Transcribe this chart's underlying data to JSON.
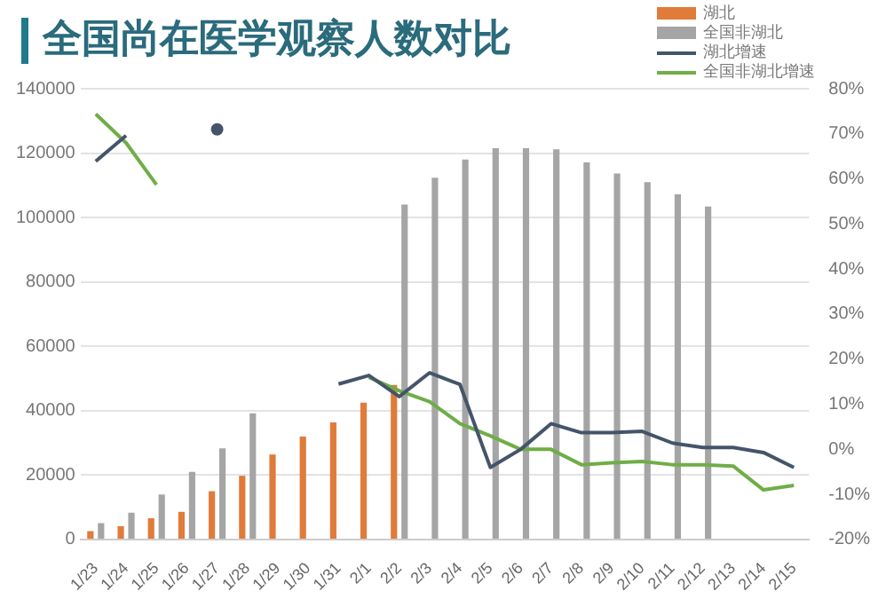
{
  "chart_data": {
    "type": "bar",
    "title": "全国尚在医学观察人数对比",
    "categories": [
      "1/23",
      "1/24",
      "1/25",
      "1/26",
      "1/27",
      "1/28",
      "1/29",
      "1/30",
      "1/31",
      "2/1",
      "2/2",
      "2/3",
      "2/4",
      "2/5",
      "2/6",
      "2/7",
      "2/8",
      "2/9",
      "2/10",
      "2/11",
      "2/12",
      "2/13",
      "2/14",
      "2/15"
    ],
    "series": [
      {
        "name": "湖北",
        "color": "#e07b39",
        "values": [
          2600,
          4100,
          6600,
          8600,
          15000,
          19800,
          26400,
          32000,
          36400,
          42500,
          48000,
          null,
          null,
          null,
          null,
          null,
          null,
          null,
          null,
          null,
          null,
          null,
          null,
          null
        ]
      },
      {
        "name": "全国非湖北",
        "color": "#a5a5a5",
        "values": [
          5100,
          8300,
          14000,
          21000,
          28300,
          39200,
          null,
          null,
          null,
          null,
          104000,
          112400,
          118000,
          121500,
          121500,
          121200,
          117100,
          113700,
          111000,
          107200,
          103400,
          null,
          null,
          null
        ]
      },
      {
        "name": "湖北增速",
        "type": "line",
        "axis": "y2",
        "color": "#44546a",
        "values": [
          63.9,
          69.6,
          null,
          null,
          71,
          null,
          null,
          null,
          14.5,
          16.4,
          11.7,
          17,
          14.4,
          -4,
          0,
          5.7,
          3.7,
          3.7,
          4,
          1.4,
          0.4,
          0.4,
          -0.7,
          -4
        ]
      },
      {
        "name": "全国非湖北增速",
        "type": "line",
        "axis": "y2",
        "color": "#70ad47",
        "values": [
          74.4,
          68,
          58.7,
          null,
          null,
          null,
          null,
          null,
          null,
          16,
          13,
          10.6,
          5.7,
          3,
          0,
          0,
          -3.4,
          -3,
          -2.7,
          -3.4,
          -3.4,
          -3.7,
          -9,
          -8
        ]
      }
    ],
    "ylim": [
      0,
      140000
    ],
    "yticks": [
      0,
      20000,
      40000,
      60000,
      80000,
      100000,
      120000,
      140000
    ],
    "y2lim": [
      -20,
      80
    ],
    "y2ticks": [
      {
        "value": -20,
        "label": "-20%"
      },
      {
        "value": -10,
        "label": "-10%"
      },
      {
        "value": 0,
        "label": "0%"
      },
      {
        "value": 10,
        "label": "10%"
      },
      {
        "value": 20,
        "label": "20%"
      },
      {
        "value": 30,
        "label": "30%"
      },
      {
        "value": 40,
        "label": "40%"
      },
      {
        "value": 50,
        "label": "50%"
      },
      {
        "value": 60,
        "label": "60%"
      },
      {
        "value": 70,
        "label": "70%"
      },
      {
        "value": 80,
        "label": "80%"
      }
    ],
    "grid": "y",
    "legend": "top right",
    "marker": "none",
    "line_style": "solid"
  }
}
